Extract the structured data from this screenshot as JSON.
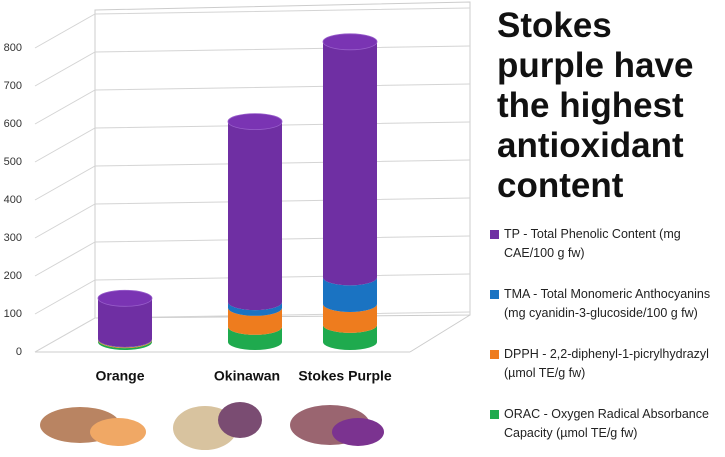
{
  "chart_data": {
    "type": "bar3d_stacked",
    "title": "Stokes purple have the highest antioxidant content",
    "categories": [
      "Orange",
      "Okinawan",
      "Stokes Purple"
    ],
    "series": [
      {
        "name": "ORAC - Oxygen Radical Absorbance Capacity (µmol TE/g fw)",
        "color": "#1faa4e",
        "values": [
          5,
          40,
          45
        ]
      },
      {
        "name": "DPPH - 2,2-diphenyl-1-picrylhydrazyl (µmol TE/g fw)",
        "color": "#ee7c1e",
        "values": [
          2,
          50,
          55
        ]
      },
      {
        "name": "TMA - Total Monomeric Anthocyanins (mg cyanidin-3-glucoside/100 g fw)",
        "color": "#1a73c2",
        "values": [
          1,
          15,
          70
        ]
      },
      {
        "name": "TP - Total Phenolic Content (mg CAE/100 g fw)",
        "color": "#6f2fa3",
        "values": [
          107,
          475,
          620
        ]
      }
    ],
    "ylim": [
      0,
      800
    ],
    "yticks": [
      0,
      100,
      200,
      300,
      400,
      500,
      600,
      700,
      800
    ],
    "grid": true
  }
}
